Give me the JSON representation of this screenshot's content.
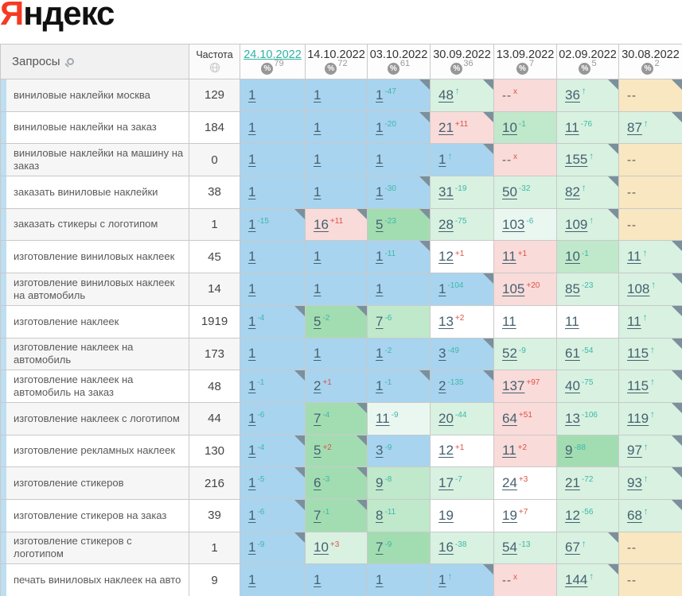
{
  "colors": {
    "blue": "#a8d4f0",
    "green": "#a2ddb2",
    "green2": "#c0e8cb",
    "mint": "#d8f1e1",
    "pale": "#eaf7f0",
    "white": "#ffffff",
    "pink": "#f9dbd9",
    "tan": "#f8e7c1",
    "stripe": "#bedef2",
    "corner": "#7b909b",
    "accent_teal": "#2fb3a3",
    "change_up": "#3cb8a6",
    "change_down": "#dd5248",
    "logo_red": "#f43b22"
  },
  "icons": {
    "percent": "%"
  },
  "logo": {
    "first_letter": "Я",
    "rest": "ндекс"
  },
  "table": {
    "queries_header": "Запросы",
    "frequency_header": "Частота",
    "dates": [
      {
        "label": "24.10.2022",
        "coverage": "79",
        "active": true
      },
      {
        "label": "14.10.2022",
        "coverage": "72",
        "active": false
      },
      {
        "label": "03.10.2022",
        "coverage": "61",
        "active": false
      },
      {
        "label": "30.09.2022",
        "coverage": "36",
        "active": false
      },
      {
        "label": "13.09.2022",
        "coverage": "7",
        "active": false
      },
      {
        "label": "02.09.2022",
        "coverage": "5",
        "active": false
      },
      {
        "label": "30.08.2022",
        "coverage": "2",
        "active": false
      }
    ],
    "rows": [
      {
        "keyword": "виниловые наклейки москва",
        "frequency": "129",
        "cells": [
          {
            "v": "1",
            "bg": "blue"
          },
          {
            "v": "1",
            "bg": "blue"
          },
          {
            "v": "1",
            "sup": "-47",
            "supColor": "teal",
            "bg": "blue",
            "corner": true
          },
          {
            "v": "48",
            "sup": "↑",
            "supColor": "teal",
            "bg": "mint",
            "corner": true
          },
          {
            "v": "--",
            "sup": "x",
            "supColor": "red",
            "bg": "pink"
          },
          {
            "v": "36",
            "sup": "↑",
            "supColor": "teal",
            "bg": "mint",
            "corner": true
          },
          {
            "v": "--",
            "bg": "tan",
            "corner": true
          }
        ]
      },
      {
        "keyword": "виниловые наклейки на заказ",
        "frequency": "184",
        "cells": [
          {
            "v": "1",
            "bg": "blue"
          },
          {
            "v": "1",
            "bg": "blue"
          },
          {
            "v": "1",
            "sup": "-20",
            "supColor": "teal",
            "bg": "blue",
            "corner": true
          },
          {
            "v": "21",
            "sup": "+11",
            "supColor": "red",
            "bg": "pink",
            "corner": true
          },
          {
            "v": "10",
            "sup": "-1",
            "supColor": "teal",
            "bg": "green2"
          },
          {
            "v": "11",
            "sup": "-76",
            "supColor": "teal",
            "bg": "mint"
          },
          {
            "v": "87",
            "sup": "↑",
            "supColor": "teal",
            "bg": "mint",
            "corner": true
          }
        ]
      },
      {
        "keyword": "виниловые наклейки на машину на заказ",
        "frequency": "0",
        "cells": [
          {
            "v": "1",
            "bg": "blue"
          },
          {
            "v": "1",
            "bg": "blue"
          },
          {
            "v": "1",
            "bg": "blue"
          },
          {
            "v": "1",
            "sup": "↑",
            "supColor": "teal",
            "bg": "blue",
            "corner": true
          },
          {
            "v": "--",
            "sup": "x",
            "supColor": "red",
            "bg": "pink"
          },
          {
            "v": "155",
            "sup": "↑",
            "supColor": "teal",
            "bg": "mint",
            "corner": true
          },
          {
            "v": "--",
            "bg": "tan"
          }
        ]
      },
      {
        "keyword": "заказать виниловые наклейки",
        "frequency": "38",
        "cells": [
          {
            "v": "1",
            "bg": "blue"
          },
          {
            "v": "1",
            "bg": "blue"
          },
          {
            "v": "1",
            "sup": "-30",
            "supColor": "teal",
            "bg": "blue",
            "corner": true
          },
          {
            "v": "31",
            "sup": "-19",
            "supColor": "teal",
            "bg": "mint"
          },
          {
            "v": "50",
            "sup": "-32",
            "supColor": "teal",
            "bg": "mint"
          },
          {
            "v": "82",
            "sup": "↑",
            "supColor": "teal",
            "bg": "mint",
            "corner": true
          },
          {
            "v": "--",
            "bg": "tan"
          }
        ]
      },
      {
        "keyword": "заказать стикеры с логотипом",
        "frequency": "1",
        "cells": [
          {
            "v": "1",
            "sup": "-15",
            "supColor": "teal",
            "bg": "blue",
            "corner": true
          },
          {
            "v": "16",
            "sup": "+11",
            "supColor": "red",
            "bg": "pink",
            "corner": true
          },
          {
            "v": "5",
            "sup": "-23",
            "supColor": "teal",
            "bg": "green",
            "corner": true
          },
          {
            "v": "28",
            "sup": "-75",
            "supColor": "teal",
            "bg": "mint"
          },
          {
            "v": "103",
            "sup": "-6",
            "supColor": "teal",
            "bg": "pale"
          },
          {
            "v": "109",
            "sup": "↑",
            "supColor": "teal",
            "bg": "mint",
            "corner": true
          },
          {
            "v": "--",
            "bg": "tan"
          }
        ]
      },
      {
        "keyword": "изготовление виниловых наклеек",
        "frequency": "45",
        "cells": [
          {
            "v": "1",
            "bg": "blue"
          },
          {
            "v": "1",
            "bg": "blue"
          },
          {
            "v": "1",
            "sup": "-11",
            "supColor": "teal",
            "bg": "blue",
            "corner": true
          },
          {
            "v": "12",
            "sup": "+1",
            "supColor": "red",
            "bg": "white"
          },
          {
            "v": "11",
            "sup": "+1",
            "supColor": "red",
            "bg": "pink"
          },
          {
            "v": "10",
            "sup": "-1",
            "supColor": "teal",
            "bg": "green2"
          },
          {
            "v": "11",
            "sup": "↑",
            "supColor": "teal",
            "bg": "mint",
            "corner": true
          }
        ]
      },
      {
        "keyword": "изготовление виниловых наклеек на автомобиль",
        "frequency": "14",
        "cells": [
          {
            "v": "1",
            "bg": "blue"
          },
          {
            "v": "1",
            "bg": "blue"
          },
          {
            "v": "1",
            "bg": "blue"
          },
          {
            "v": "1",
            "sup": "-104",
            "supColor": "teal",
            "bg": "blue",
            "corner": true
          },
          {
            "v": "105",
            "sup": "+20",
            "supColor": "red",
            "bg": "pink"
          },
          {
            "v": "85",
            "sup": "-23",
            "supColor": "teal",
            "bg": "mint"
          },
          {
            "v": "108",
            "sup": "↑",
            "supColor": "teal",
            "bg": "mint",
            "corner": true
          }
        ]
      },
      {
        "keyword": "изготовление наклеек",
        "frequency": "1919",
        "cells": [
          {
            "v": "1",
            "sup": "-4",
            "supColor": "teal",
            "bg": "blue",
            "corner": true
          },
          {
            "v": "5",
            "sup": "-2",
            "supColor": "teal",
            "bg": "green",
            "corner": true
          },
          {
            "v": "7",
            "sup": "-6",
            "supColor": "teal",
            "bg": "green2"
          },
          {
            "v": "13",
            "sup": "+2",
            "supColor": "red",
            "bg": "white"
          },
          {
            "v": "11",
            "bg": "white"
          },
          {
            "v": "11",
            "bg": "white"
          },
          {
            "v": "11",
            "sup": "↑",
            "supColor": "teal",
            "bg": "mint",
            "corner": true
          }
        ]
      },
      {
        "keyword": "изготовление наклеек на автомобиль",
        "frequency": "173",
        "cells": [
          {
            "v": "1",
            "bg": "blue"
          },
          {
            "v": "1",
            "bg": "blue"
          },
          {
            "v": "1",
            "sup": "-2",
            "supColor": "teal",
            "bg": "blue"
          },
          {
            "v": "3",
            "sup": "-49",
            "supColor": "teal",
            "bg": "blue",
            "corner": true
          },
          {
            "v": "52",
            "sup": "-9",
            "supColor": "teal",
            "bg": "mint"
          },
          {
            "v": "61",
            "sup": "-54",
            "supColor": "teal",
            "bg": "mint"
          },
          {
            "v": "115",
            "sup": "↑",
            "supColor": "teal",
            "bg": "mint",
            "corner": true
          }
        ]
      },
      {
        "keyword": "изготовление наклеек на автомобиль на заказ",
        "frequency": "48",
        "cells": [
          {
            "v": "1",
            "sup": "-1",
            "supColor": "teal",
            "bg": "blue",
            "corner": true
          },
          {
            "v": "2",
            "sup": "+1",
            "supColor": "red",
            "bg": "blue"
          },
          {
            "v": "1",
            "sup": "-1",
            "supColor": "teal",
            "bg": "blue",
            "corner": true
          },
          {
            "v": "2",
            "sup": "-135",
            "supColor": "teal",
            "bg": "blue",
            "corner": true
          },
          {
            "v": "137",
            "sup": "+97",
            "supColor": "red",
            "bg": "pink"
          },
          {
            "v": "40",
            "sup": "-75",
            "supColor": "teal",
            "bg": "mint"
          },
          {
            "v": "115",
            "sup": "↑",
            "supColor": "teal",
            "bg": "mint",
            "corner": true
          }
        ]
      },
      {
        "keyword": "изготовление наклеек с логотипом",
        "frequency": "44",
        "cells": [
          {
            "v": "1",
            "sup": "-6",
            "supColor": "teal",
            "bg": "blue"
          },
          {
            "v": "7",
            "sup": "-4",
            "supColor": "teal",
            "bg": "green",
            "corner": true
          },
          {
            "v": "11",
            "sup": "-9",
            "supColor": "teal",
            "bg": "pale"
          },
          {
            "v": "20",
            "sup": "-44",
            "supColor": "teal",
            "bg": "mint"
          },
          {
            "v": "64",
            "sup": "+51",
            "supColor": "red",
            "bg": "pink"
          },
          {
            "v": "13",
            "sup": "-106",
            "supColor": "teal",
            "bg": "mint"
          },
          {
            "v": "119",
            "sup": "↑",
            "supColor": "teal",
            "bg": "mint",
            "corner": true
          }
        ]
      },
      {
        "keyword": "изготовление рекламных наклеек",
        "frequency": "130",
        "cells": [
          {
            "v": "1",
            "sup": "-4",
            "supColor": "teal",
            "bg": "blue",
            "corner": true
          },
          {
            "v": "5",
            "sup": "+2",
            "supColor": "red",
            "bg": "green",
            "corner": true
          },
          {
            "v": "3",
            "sup": "-9",
            "supColor": "teal",
            "bg": "blue"
          },
          {
            "v": "12",
            "sup": "+1",
            "supColor": "red",
            "bg": "white"
          },
          {
            "v": "11",
            "sup": "+2",
            "supColor": "red",
            "bg": "pink"
          },
          {
            "v": "9",
            "sup": "-88",
            "supColor": "teal",
            "bg": "green"
          },
          {
            "v": "97",
            "sup": "↑",
            "supColor": "teal",
            "bg": "mint",
            "corner": true
          }
        ]
      },
      {
        "keyword": "изготовление стикеров",
        "frequency": "216",
        "cells": [
          {
            "v": "1",
            "sup": "-5",
            "supColor": "teal",
            "bg": "blue",
            "corner": true
          },
          {
            "v": "6",
            "sup": "-3",
            "supColor": "teal",
            "bg": "green",
            "corner": true
          },
          {
            "v": "9",
            "sup": "-8",
            "supColor": "teal",
            "bg": "green2"
          },
          {
            "v": "17",
            "sup": "-7",
            "supColor": "teal",
            "bg": "mint"
          },
          {
            "v": "24",
            "sup": "+3",
            "supColor": "red",
            "bg": "white"
          },
          {
            "v": "21",
            "sup": "-72",
            "supColor": "teal",
            "bg": "mint"
          },
          {
            "v": "93",
            "sup": "↑",
            "supColor": "teal",
            "bg": "mint",
            "corner": true
          }
        ]
      },
      {
        "keyword": "изготовление стикеров на заказ",
        "frequency": "39",
        "cells": [
          {
            "v": "1",
            "sup": "-6",
            "supColor": "teal",
            "bg": "blue",
            "corner": true
          },
          {
            "v": "7",
            "sup": "-1",
            "supColor": "teal",
            "bg": "green",
            "corner": true
          },
          {
            "v": "8",
            "sup": "-11",
            "supColor": "teal",
            "bg": "green2"
          },
          {
            "v": "19",
            "bg": "white"
          },
          {
            "v": "19",
            "sup": "+7",
            "supColor": "red",
            "bg": "white"
          },
          {
            "v": "12",
            "sup": "-56",
            "supColor": "teal",
            "bg": "mint"
          },
          {
            "v": "68",
            "sup": "↑",
            "supColor": "teal",
            "bg": "mint",
            "corner": true
          }
        ]
      },
      {
        "keyword": "изготовление стикеров с логотипом",
        "frequency": "1",
        "cells": [
          {
            "v": "1",
            "sup": "-9",
            "supColor": "teal",
            "bg": "blue",
            "corner": true
          },
          {
            "v": "10",
            "sup": "+3",
            "supColor": "red",
            "bg": "mint"
          },
          {
            "v": "7",
            "sup": "-9",
            "supColor": "teal",
            "bg": "green"
          },
          {
            "v": "16",
            "sup": "-38",
            "supColor": "teal",
            "bg": "mint"
          },
          {
            "v": "54",
            "sup": "-13",
            "supColor": "teal",
            "bg": "mint"
          },
          {
            "v": "67",
            "sup": "↑",
            "supColor": "teal",
            "bg": "mint",
            "corner": true
          },
          {
            "v": "--",
            "bg": "tan"
          }
        ]
      },
      {
        "keyword": "печать виниловых наклеек на авто",
        "frequency": "9",
        "cells": [
          {
            "v": "1",
            "bg": "blue"
          },
          {
            "v": "1",
            "bg": "blue"
          },
          {
            "v": "1",
            "bg": "blue"
          },
          {
            "v": "1",
            "sup": "↑",
            "supColor": "teal",
            "bg": "blue",
            "corner": true
          },
          {
            "v": "--",
            "sup": "x",
            "supColor": "red",
            "bg": "pink"
          },
          {
            "v": "144",
            "sup": "↑",
            "supColor": "teal",
            "bg": "mint",
            "corner": true
          },
          {
            "v": "--",
            "bg": "tan"
          }
        ]
      }
    ]
  }
}
